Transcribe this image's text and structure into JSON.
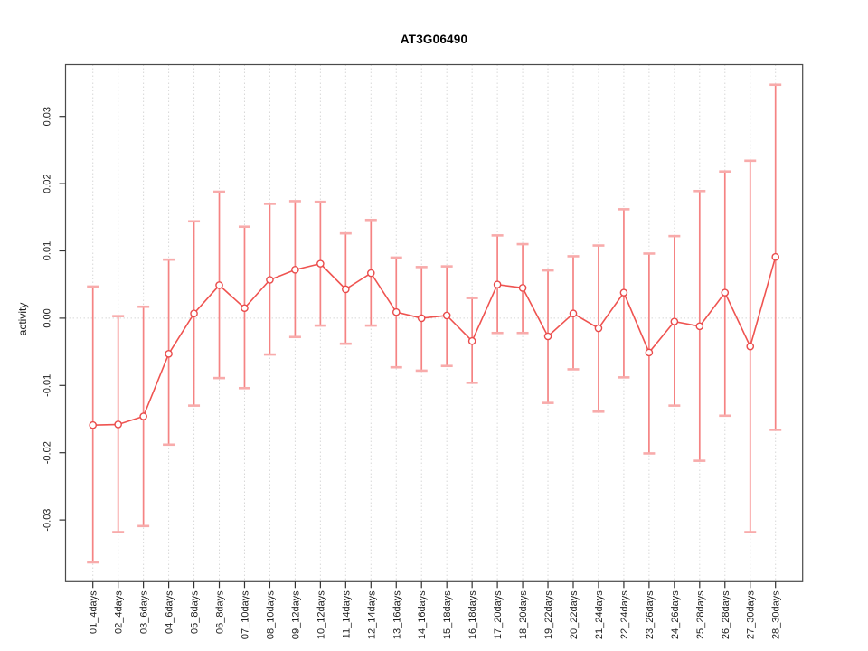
{
  "chart_data": {
    "type": "line",
    "title": "AT3G06490",
    "ylabel": "activity",
    "xlabel": "",
    "legend": "none",
    "grid": "dotted vertical gridline at every category; dotted horizontal line at y=0",
    "ylim": [
      -0.0375,
      0.036
    ],
    "yticks": [
      0.03,
      0.02,
      0.01,
      0.0,
      -0.01,
      -0.02,
      -0.03
    ],
    "ytick_labels": [
      "0.03",
      "0.02",
      "0.01",
      "0.00",
      "-0.01",
      "-0.02",
      "-0.03"
    ],
    "marker": "open-circle",
    "colors": {
      "error_bar": "#f58383",
      "error_cap": "#f8abab",
      "series_line": "#ef5350",
      "marker_stroke": "#e94b4b",
      "marker_fill": "#ffffff",
      "gridline": "#d8d8d8",
      "box": "#4a4a4a",
      "tick": "#333333"
    },
    "categories": [
      "01_4days",
      "02_4days",
      "03_6days",
      "04_6days",
      "05_8days",
      "06_8days",
      "07_10days",
      "08_10days",
      "09_12days",
      "10_12days",
      "11_14days",
      "12_14days",
      "13_16days",
      "14_16days",
      "15_18days",
      "16_18days",
      "17_20days",
      "18_20days",
      "19_22days",
      "20_22days",
      "21_24days",
      "22_24days",
      "23_26days",
      "24_26days",
      "25_28days",
      "26_28days",
      "27_30days",
      "28_30days"
    ],
    "values": [
      -0.0159,
      -0.0158,
      -0.0146,
      -0.0053,
      0.0007,
      0.0049,
      0.0015,
      0.0057,
      0.0072,
      0.0081,
      0.0043,
      0.0067,
      0.0009,
      0.0,
      0.0004,
      -0.0034,
      0.005,
      0.0045,
      -0.0027,
      0.0007,
      -0.0015,
      0.0038,
      -0.0051,
      -0.0005,
      -0.0012,
      0.0038,
      -0.0042,
      0.0091
    ],
    "error_high": [
      0.0047,
      0.0003,
      0.0017,
      0.0087,
      0.0144,
      0.0188,
      0.0136,
      0.017,
      0.0174,
      0.0173,
      0.0126,
      0.0146,
      0.009,
      0.0076,
      0.0077,
      0.003,
      0.0123,
      0.011,
      0.0071,
      0.0092,
      0.0108,
      0.0162,
      0.0096,
      0.0122,
      0.0189,
      0.0218,
      0.0234,
      0.0347
    ],
    "error_low": [
      -0.0363,
      -0.0318,
      -0.0309,
      -0.0188,
      -0.013,
      -0.0089,
      -0.0104,
      -0.0054,
      -0.0028,
      -0.0011,
      -0.0038,
      -0.0011,
      -0.0073,
      -0.0078,
      -0.0071,
      -0.0096,
      -0.0022,
      -0.0022,
      -0.0126,
      -0.0076,
      -0.0139,
      -0.0088,
      -0.0201,
      -0.013,
      -0.0212,
      -0.0145,
      -0.0318,
      -0.0166
    ]
  }
}
